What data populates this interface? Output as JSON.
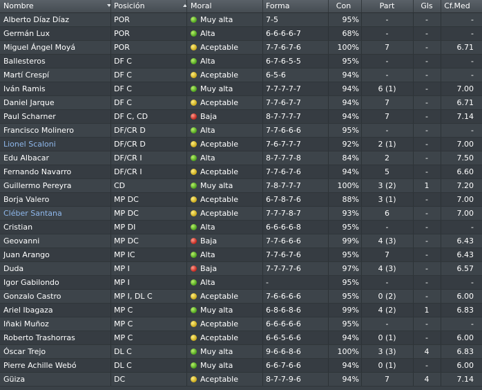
{
  "headers": {
    "name": "Nombre",
    "position": "Posición",
    "morale": "Moral",
    "form": "Forma",
    "condition": "Con",
    "apps": "Part",
    "goals": "Gls",
    "avg_rating": "Cf.Med"
  },
  "morale_colors": {
    "green": "#4aa01c",
    "yellow": "#c9a818",
    "red": "#c0241c"
  },
  "players": [
    {
      "name": "Alberto Díaz Díaz",
      "position": "POR",
      "morale_icon": "green",
      "morale": "Muy alta",
      "form": "7-5",
      "condition": "95%",
      "apps": "-",
      "goals": "-",
      "rating": "-"
    },
    {
      "name": "Germán Lux",
      "position": "POR",
      "morale_icon": "green",
      "morale": "Alta",
      "form": "6-6-6-6-7",
      "condition": "68%",
      "apps": "-",
      "goals": "-",
      "rating": "-"
    },
    {
      "name": "Miguel Ángel Moyá",
      "position": "POR",
      "morale_icon": "yellow",
      "morale": "Aceptable",
      "form": "7-7-6-7-6",
      "condition": "100%",
      "apps": "7",
      "goals": "-",
      "rating": "6.71"
    },
    {
      "name": "Ballesteros",
      "position": "DF C",
      "morale_icon": "green",
      "morale": "Alta",
      "form": "6-7-6-5-5",
      "condition": "95%",
      "apps": "-",
      "goals": "-",
      "rating": "-"
    },
    {
      "name": "Martí Crespí",
      "position": "DF C",
      "morale_icon": "yellow",
      "morale": "Aceptable",
      "form": "6-5-6",
      "condition": "94%",
      "apps": "-",
      "goals": "-",
      "rating": "-"
    },
    {
      "name": "Iván Ramis",
      "position": "DF C",
      "morale_icon": "green",
      "morale": "Muy alta",
      "form": "7-7-7-7-7",
      "condition": "94%",
      "apps": "6 (1)",
      "goals": "-",
      "rating": "7.00"
    },
    {
      "name": "Daniel Jarque",
      "position": "DF C",
      "morale_icon": "yellow",
      "morale": "Aceptable",
      "form": "7-7-6-7-7",
      "condition": "94%",
      "apps": "7",
      "goals": "-",
      "rating": "6.71"
    },
    {
      "name": "Paul Scharner",
      "position": "DF C, CD",
      "morale_icon": "red",
      "morale": "Baja",
      "form": "8-7-7-7-7",
      "condition": "94%",
      "apps": "7",
      "goals": "-",
      "rating": "7.14"
    },
    {
      "name": "Francisco Molinero",
      "position": "DF/CR D",
      "morale_icon": "green",
      "morale": "Alta",
      "form": "7-7-6-6-6",
      "condition": "95%",
      "apps": "-",
      "goals": "-",
      "rating": "-"
    },
    {
      "name": "Lionel Scaloni",
      "link": true,
      "position": "DF/CR D",
      "morale_icon": "yellow",
      "morale": "Aceptable",
      "form": "7-6-7-7-7",
      "condition": "92%",
      "apps": "2 (1)",
      "goals": "-",
      "rating": "7.00"
    },
    {
      "name": "Edu Albacar",
      "position": "DF/CR I",
      "morale_icon": "green",
      "morale": "Alta",
      "form": "8-7-7-7-8",
      "condition": "84%",
      "apps": "2",
      "goals": "-",
      "rating": "7.50"
    },
    {
      "name": "Fernando Navarro",
      "position": "DF/CR I",
      "morale_icon": "yellow",
      "morale": "Aceptable",
      "form": "7-7-6-7-6",
      "condition": "94%",
      "apps": "5",
      "goals": "-",
      "rating": "6.60"
    },
    {
      "name": "Guillermo Pereyra",
      "position": "CD",
      "morale_icon": "green",
      "morale": "Muy alta",
      "form": "7-8-7-7-7",
      "condition": "100%",
      "apps": "3 (2)",
      "goals": "1",
      "rating": "7.20"
    },
    {
      "name": "Borja Valero",
      "position": "MP DC",
      "morale_icon": "yellow",
      "morale": "Aceptable",
      "form": "6-7-8-7-6",
      "condition": "88%",
      "apps": "3 (1)",
      "goals": "-",
      "rating": "7.00"
    },
    {
      "name": "Cléber Santana",
      "link": true,
      "position": "MP DC",
      "morale_icon": "yellow",
      "morale": "Aceptable",
      "form": "7-7-7-8-7",
      "condition": "93%",
      "apps": "6",
      "goals": "-",
      "rating": "7.00"
    },
    {
      "name": "Cristian",
      "position": "MP DI",
      "morale_icon": "green",
      "morale": "Alta",
      "form": "6-6-6-6-8",
      "condition": "95%",
      "apps": "-",
      "goals": "-",
      "rating": "-"
    },
    {
      "name": "Geovanni",
      "position": "MP DC",
      "morale_icon": "red",
      "morale": "Baja",
      "form": "7-7-6-6-6",
      "condition": "99%",
      "apps": "4 (3)",
      "goals": "-",
      "rating": "6.43"
    },
    {
      "name": "Juan Arango",
      "position": "MP IC",
      "morale_icon": "green",
      "morale": "Alta",
      "form": "7-7-6-7-6",
      "condition": "95%",
      "apps": "7",
      "goals": "-",
      "rating": "6.43"
    },
    {
      "name": "Duda",
      "position": "MP I",
      "morale_icon": "red",
      "morale": "Baja",
      "form": "7-7-7-7-6",
      "condition": "97%",
      "apps": "4 (3)",
      "goals": "-",
      "rating": "6.57"
    },
    {
      "name": "Igor Gabilondo",
      "position": "MP I",
      "morale_icon": "green",
      "morale": "Alta",
      "form": "-",
      "condition": "95%",
      "apps": "-",
      "goals": "-",
      "rating": "-"
    },
    {
      "name": "Gonzalo Castro",
      "position": "MP I, DL C",
      "morale_icon": "yellow",
      "morale": "Aceptable",
      "form": "7-6-6-6-6",
      "condition": "95%",
      "apps": "0 (2)",
      "goals": "-",
      "rating": "6.00"
    },
    {
      "name": "Ariel Ibagaza",
      "position": "MP C",
      "morale_icon": "green",
      "morale": "Muy alta",
      "form": "6-8-6-8-6",
      "condition": "99%",
      "apps": "4 (2)",
      "goals": "1",
      "rating": "6.83"
    },
    {
      "name": "Iñaki Muñoz",
      "position": "MP C",
      "morale_icon": "yellow",
      "morale": "Aceptable",
      "form": "6-6-6-6-6",
      "condition": "95%",
      "apps": "-",
      "goals": "-",
      "rating": "-"
    },
    {
      "name": "Roberto Trashorras",
      "position": "MP C",
      "morale_icon": "yellow",
      "morale": "Aceptable",
      "form": "6-6-5-6-6",
      "condition": "94%",
      "apps": "0 (1)",
      "goals": "-",
      "rating": "6.00"
    },
    {
      "name": "Óscar Trejo",
      "position": "DL C",
      "morale_icon": "green",
      "morale": "Muy alta",
      "form": "9-6-6-8-6",
      "condition": "100%",
      "apps": "3 (3)",
      "goals": "4",
      "rating": "6.83"
    },
    {
      "name": "Pierre Achille Webó",
      "position": "DL C",
      "morale_icon": "green",
      "morale": "Muy alta",
      "form": "6-6-7-6-6",
      "condition": "94%",
      "apps": "0 (1)",
      "goals": "-",
      "rating": "6.00"
    },
    {
      "name": "Güiza",
      "position": "DC",
      "morale_icon": "yellow",
      "morale": "Aceptable",
      "form": "8-7-7-9-6",
      "condition": "94%",
      "apps": "7",
      "goals": "4",
      "rating": "7.14"
    }
  ]
}
